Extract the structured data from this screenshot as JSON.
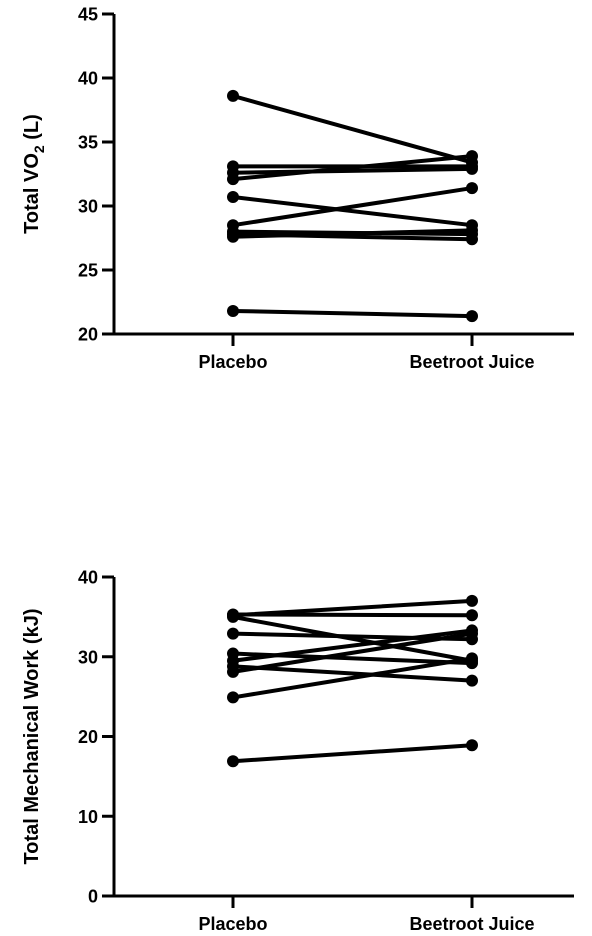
{
  "chart_data": [
    {
      "type": "line",
      "title": "",
      "xlabel": "",
      "ylabel": {
        "main": "Total VO",
        "sub": "2",
        "tail": " (L)"
      },
      "categories": [
        "Placebo",
        "Beetroot Juice"
      ],
      "ylim": [
        20,
        45
      ],
      "yticks": [
        "20",
        "25",
        "30",
        "35",
        "40",
        "45"
      ],
      "grid": false,
      "series": [
        {
          "values": [
            38.6,
            33.4
          ]
        },
        {
          "values": [
            33.1,
            33.1
          ]
        },
        {
          "values": [
            32.6,
            32.9
          ]
        },
        {
          "values": [
            32.1,
            33.9
          ]
        },
        {
          "values": [
            30.7,
            28.5
          ]
        },
        {
          "values": [
            28.5,
            31.4
          ]
        },
        {
          "values": [
            28.0,
            27.8
          ]
        },
        {
          "values": [
            27.6,
            28.1
          ]
        },
        {
          "values": [
            27.8,
            27.4
          ]
        },
        {
          "values": [
            21.8,
            21.4
          ]
        }
      ]
    },
    {
      "type": "line",
      "title": "",
      "xlabel": "",
      "ylabel": {
        "main": "Total Mechanical Work (kJ)",
        "sub": "",
        "tail": ""
      },
      "categories": [
        "Placebo",
        "Beetroot Juice"
      ],
      "ylim": [
        0,
        40
      ],
      "yticks": [
        "0",
        "10",
        "20",
        "30",
        "40"
      ],
      "grid": false,
      "series": [
        {
          "values": [
            35.2,
            37.0
          ]
        },
        {
          "values": [
            35.3,
            35.2
          ]
        },
        {
          "values": [
            35.0,
            29.5
          ]
        },
        {
          "values": [
            32.9,
            32.2
          ]
        },
        {
          "values": [
            30.4,
            29.2
          ]
        },
        {
          "values": [
            29.5,
            33.3
          ]
        },
        {
          "values": [
            28.8,
            27.0
          ]
        },
        {
          "values": [
            28.1,
            32.9
          ]
        },
        {
          "values": [
            24.9,
            29.8
          ]
        },
        {
          "values": [
            16.9,
            18.9
          ]
        }
      ]
    }
  ]
}
